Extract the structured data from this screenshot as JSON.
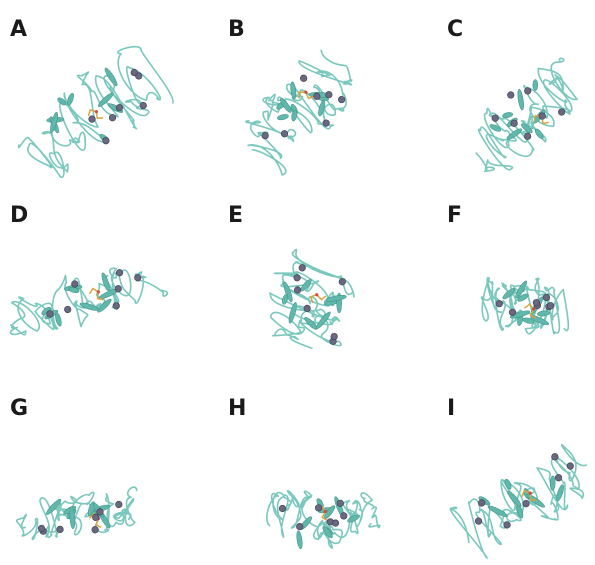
{
  "panels": [
    {
      "label": "A"
    },
    {
      "label": "B"
    },
    {
      "label": "C"
    },
    {
      "label": "D"
    },
    {
      "label": "E"
    },
    {
      "label": "F"
    },
    {
      "label": "G"
    },
    {
      "label": "H"
    },
    {
      "label": "I"
    }
  ]
}
